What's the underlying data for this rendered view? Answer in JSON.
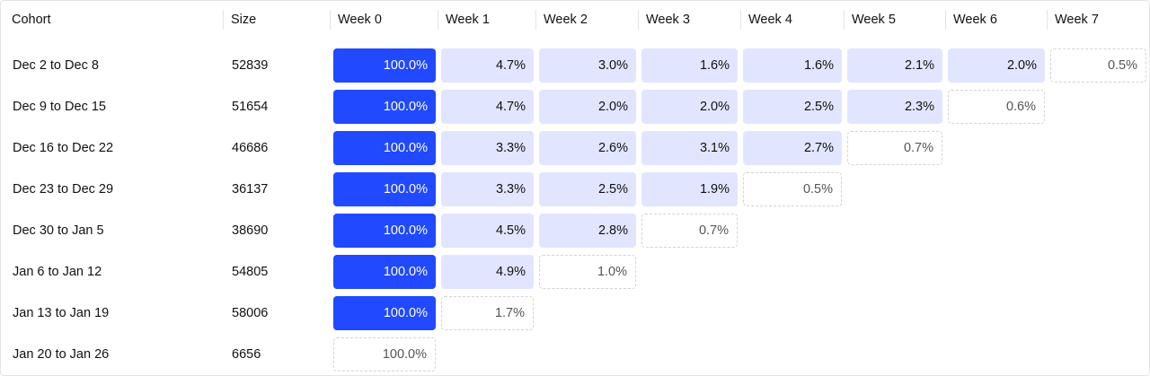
{
  "columns": [
    "Cohort",
    "Size",
    "Week 0",
    "Week 1",
    "Week 2",
    "Week 3",
    "Week 4",
    "Week 5",
    "Week 6",
    "Week 7"
  ],
  "colors": {
    "base": "#2149ff",
    "retained": "#e2e5ff",
    "pending_border": "#d4d4d8"
  },
  "rows": [
    {
      "cohort": "Dec 2 to Dec 8",
      "size": "52839",
      "values": [
        "100.0%",
        "4.7%",
        "3.0%",
        "1.6%",
        "1.6%",
        "2.1%",
        "2.0%",
        "0.5%"
      ]
    },
    {
      "cohort": "Dec 9 to Dec 15",
      "size": "51654",
      "values": [
        "100.0%",
        "4.7%",
        "2.0%",
        "2.0%",
        "2.5%",
        "2.3%",
        "0.6%"
      ]
    },
    {
      "cohort": "Dec 16 to Dec 22",
      "size": "46686",
      "values": [
        "100.0%",
        "3.3%",
        "2.6%",
        "3.1%",
        "2.7%",
        "0.7%"
      ]
    },
    {
      "cohort": "Dec 23 to Dec 29",
      "size": "36137",
      "values": [
        "100.0%",
        "3.3%",
        "2.5%",
        "1.9%",
        "0.5%"
      ]
    },
    {
      "cohort": "Dec 30 to Jan 5",
      "size": "38690",
      "values": [
        "100.0%",
        "4.5%",
        "2.8%",
        "0.7%"
      ]
    },
    {
      "cohort": "Jan 6 to Jan 12",
      "size": "54805",
      "values": [
        "100.0%",
        "4.9%",
        "1.0%"
      ]
    },
    {
      "cohort": "Jan 13 to Jan 19",
      "size": "58006",
      "values": [
        "100.0%",
        "1.7%"
      ]
    },
    {
      "cohort": "Jan 20 to Jan 26",
      "size": "6656",
      "values": [
        "100.0%"
      ]
    }
  ]
}
